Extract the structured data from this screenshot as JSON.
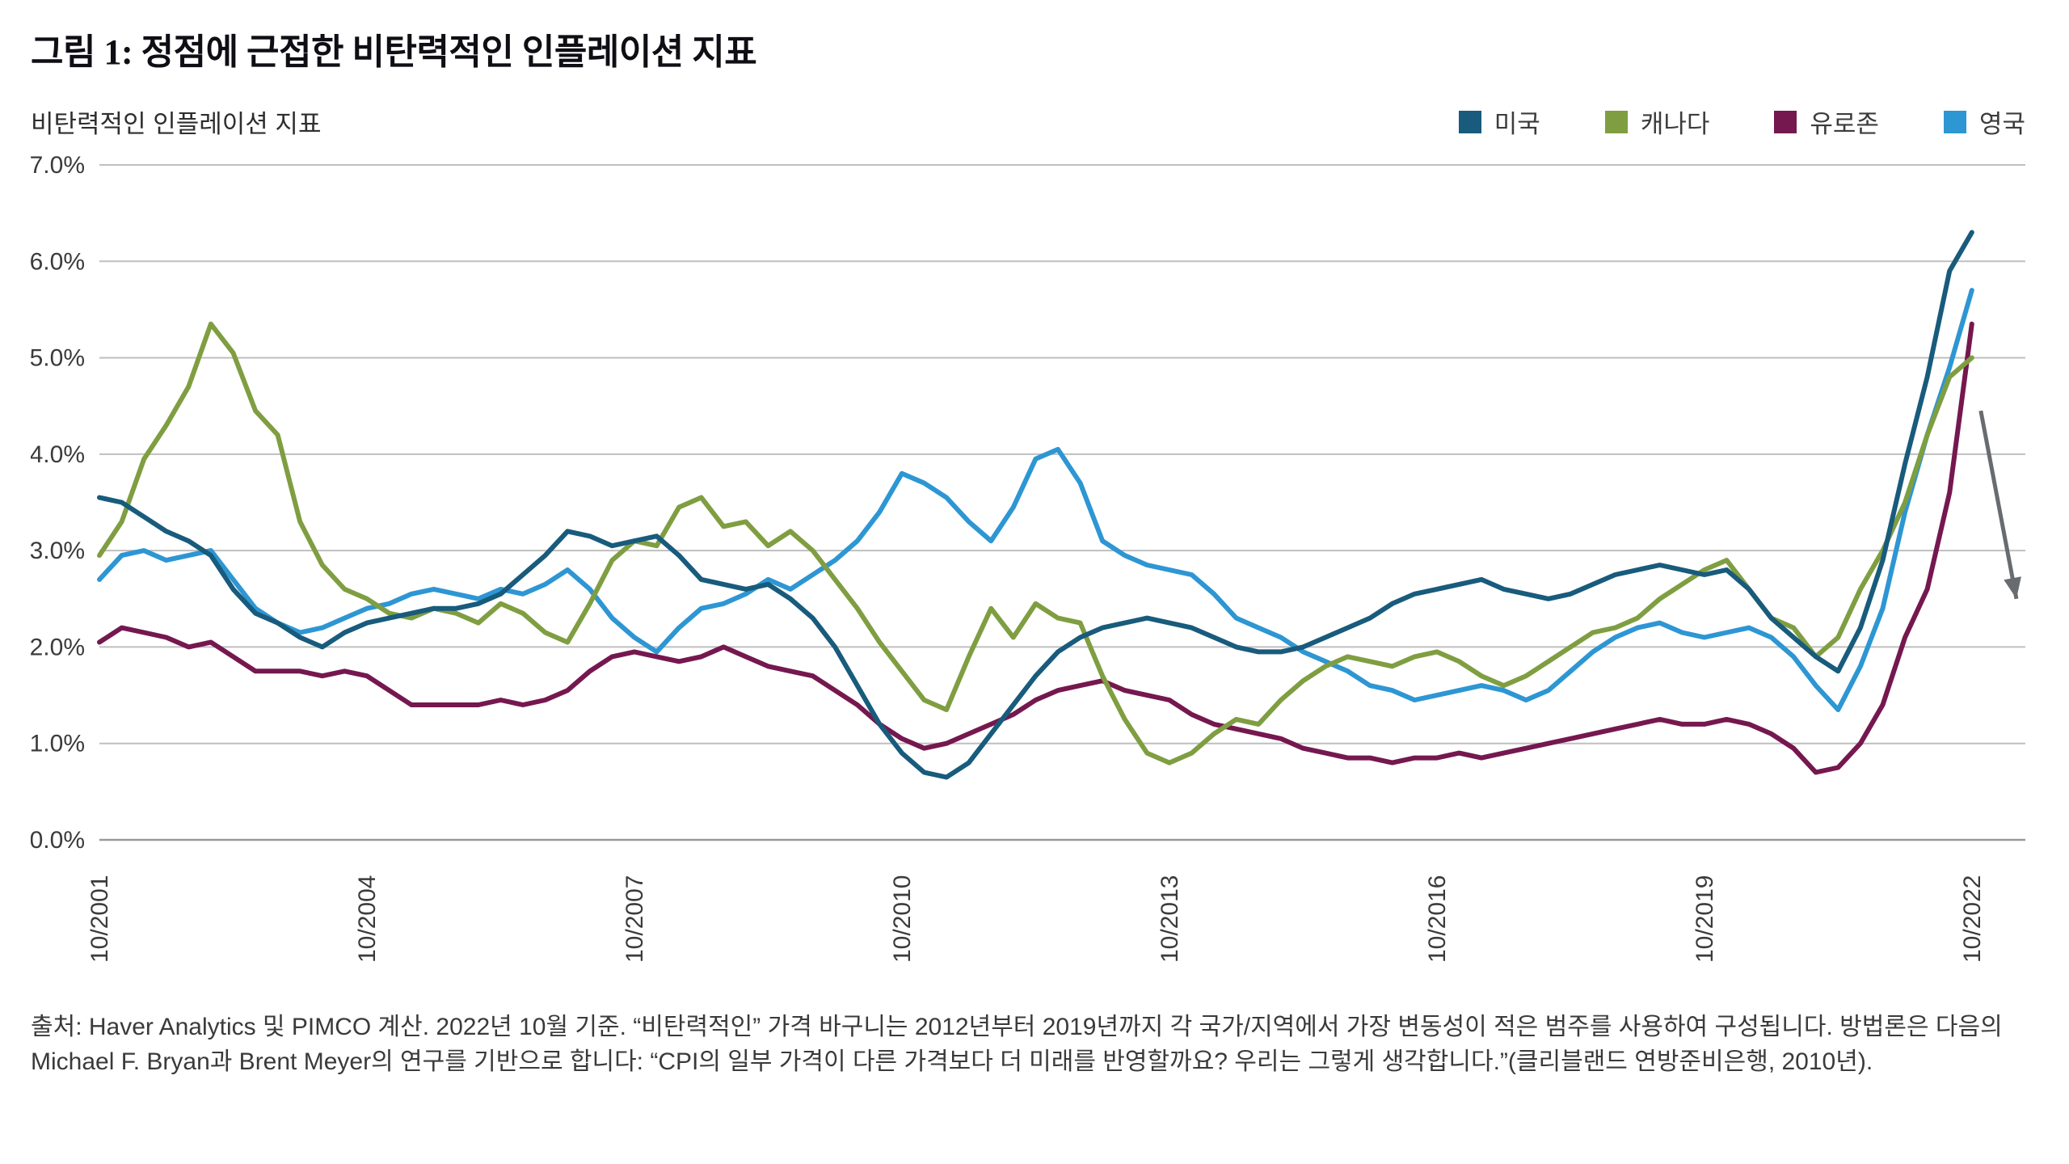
{
  "header": {
    "title": "그림 1: 정점에 근접한 비탄력적인 인플레이션 지표",
    "subtitle": "비탄력적인 인플레이션 지표"
  },
  "footer": {
    "source_note": "출처: Haver Analytics 및 PIMCO 계산. 2022년 10월 기준. “비탄력적인” 가격 바구니는 2012년부터 2019년까지 각 국가/지역에서 가장 변동성이 적은 범주를 사용하여 구성됩니다. 방법론은 다음의 Michael F. Bryan과 Brent Meyer의 연구를 기반으로 합니다: “CPI의 일부 가격이 다른 가격보다 더 미래를 반영할까요? 우리는 그렇게 생각합니다.”(클리블랜드 연방준비은행, 2010년)."
  },
  "chart_data": {
    "type": "line",
    "title": "그림 1: 정점에 근접한 비탄력적인 인플레이션 지표",
    "subtitle": "비탄력적인 인플레이션 지표",
    "xlabel": "",
    "ylabel": "",
    "ylim": [
      0,
      7
    ],
    "xlim": [
      2001.75,
      2023.35
    ],
    "grid": "horizontal",
    "legend_position": "top-right",
    "x_start": 2001.75,
    "x_step_years": 0.25,
    "x_unit": "quarterly, Oct 2001 - Oct 2022 (year fractions)",
    "yticks": [
      {
        "value": 0,
        "label": "0.0%"
      },
      {
        "value": 1,
        "label": "1.0%"
      },
      {
        "value": 2,
        "label": "2.0%"
      },
      {
        "value": 3,
        "label": "3.0%"
      },
      {
        "value": 4,
        "label": "4.0%"
      },
      {
        "value": 5,
        "label": "5.0%"
      },
      {
        "value": 6,
        "label": "6.0%"
      },
      {
        "value": 7,
        "label": "7.0%"
      }
    ],
    "xticks": [
      {
        "value": 2001.75,
        "label": "10/2001"
      },
      {
        "value": 2004.75,
        "label": "10/2004"
      },
      {
        "value": 2007.75,
        "label": "10/2007"
      },
      {
        "value": 2010.75,
        "label": "10/2010"
      },
      {
        "value": 2013.75,
        "label": "10/2013"
      },
      {
        "value": 2016.75,
        "label": "10/2016"
      },
      {
        "value": 2019.75,
        "label": "10/2019"
      },
      {
        "value": 2022.75,
        "label": "10/2022"
      }
    ],
    "colors": {
      "grid": "#BFBFBF",
      "axis": "#9A9A9A",
      "text": "#3B3B3B",
      "arrow": "#686C70"
    },
    "series": [
      {
        "id": "us",
        "name": "미국",
        "color": "#185B7C",
        "values": [
          3.55,
          3.5,
          3.35,
          3.2,
          3.1,
          2.95,
          2.6,
          2.35,
          2.25,
          2.1,
          2.0,
          2.15,
          2.25,
          2.3,
          2.35,
          2.4,
          2.4,
          2.45,
          2.55,
          2.75,
          2.95,
          3.2,
          3.15,
          3.05,
          3.1,
          3.15,
          2.95,
          2.7,
          2.65,
          2.6,
          2.65,
          2.5,
          2.3,
          2.0,
          1.6,
          1.2,
          0.9,
          0.7,
          0.65,
          0.8,
          1.1,
          1.4,
          1.7,
          1.95,
          2.1,
          2.2,
          2.25,
          2.3,
          2.25,
          2.2,
          2.1,
          2.0,
          1.95,
          1.95,
          2.0,
          2.1,
          2.2,
          2.3,
          2.45,
          2.55,
          2.6,
          2.65,
          2.7,
          2.6,
          2.55,
          2.5,
          2.55,
          2.65,
          2.75,
          2.8,
          2.85,
          2.8,
          2.75,
          2.8,
          2.6,
          2.3,
          2.1,
          1.9,
          1.75,
          2.2,
          2.9,
          3.9,
          4.8,
          5.9,
          6.3
        ]
      },
      {
        "id": "canada",
        "name": "캐나다",
        "color": "#7F9E41",
        "values": [
          2.95,
          3.3,
          3.95,
          4.3,
          4.7,
          5.35,
          5.05,
          4.45,
          4.2,
          3.3,
          2.85,
          2.6,
          2.5,
          2.35,
          2.3,
          2.4,
          2.35,
          2.25,
          2.45,
          2.35,
          2.15,
          2.05,
          2.45,
          2.9,
          3.1,
          3.05,
          3.45,
          3.55,
          3.25,
          3.3,
          3.05,
          3.2,
          3.0,
          2.7,
          2.4,
          2.05,
          1.75,
          1.45,
          1.35,
          1.9,
          2.4,
          2.1,
          2.45,
          2.3,
          2.25,
          1.7,
          1.25,
          0.9,
          0.8,
          0.9,
          1.1,
          1.25,
          1.2,
          1.45,
          1.65,
          1.8,
          1.9,
          1.85,
          1.8,
          1.9,
          1.95,
          1.85,
          1.7,
          1.6,
          1.7,
          1.85,
          2.0,
          2.15,
          2.2,
          2.3,
          2.5,
          2.65,
          2.8,
          2.9,
          2.6,
          2.3,
          2.2,
          1.9,
          2.1,
          2.6,
          3.0,
          3.5,
          4.2,
          4.8,
          5.0
        ]
      },
      {
        "id": "eurozone",
        "name": "유로존",
        "color": "#75184F",
        "values": [
          2.05,
          2.2,
          2.15,
          2.1,
          2.0,
          2.05,
          1.9,
          1.75,
          1.75,
          1.75,
          1.7,
          1.75,
          1.7,
          1.55,
          1.4,
          1.4,
          1.4,
          1.4,
          1.45,
          1.4,
          1.45,
          1.55,
          1.75,
          1.9,
          1.95,
          1.9,
          1.85,
          1.9,
          2.0,
          1.9,
          1.8,
          1.75,
          1.7,
          1.55,
          1.4,
          1.2,
          1.05,
          0.95,
          1.0,
          1.1,
          1.2,
          1.3,
          1.45,
          1.55,
          1.6,
          1.65,
          1.55,
          1.5,
          1.45,
          1.3,
          1.2,
          1.15,
          1.1,
          1.05,
          0.95,
          0.9,
          0.85,
          0.85,
          0.8,
          0.85,
          0.85,
          0.9,
          0.85,
          0.9,
          0.95,
          1.0,
          1.05,
          1.1,
          1.15,
          1.2,
          1.25,
          1.2,
          1.2,
          1.25,
          1.2,
          1.1,
          0.95,
          0.7,
          0.75,
          1.0,
          1.4,
          2.1,
          2.6,
          3.6,
          5.35
        ]
      },
      {
        "id": "uk",
        "name": "영국",
        "color": "#2D96D3",
        "values": [
          2.7,
          2.95,
          3.0,
          2.9,
          2.95,
          3.0,
          2.7,
          2.4,
          2.25,
          2.15,
          2.2,
          2.3,
          2.4,
          2.45,
          2.55,
          2.6,
          2.55,
          2.5,
          2.6,
          2.55,
          2.65,
          2.8,
          2.6,
          2.3,
          2.1,
          1.95,
          2.2,
          2.4,
          2.45,
          2.55,
          2.7,
          2.6,
          2.75,
          2.9,
          3.1,
          3.4,
          3.8,
          3.7,
          3.55,
          3.3,
          3.1,
          3.45,
          3.95,
          4.05,
          3.7,
          3.1,
          2.95,
          2.85,
          2.8,
          2.75,
          2.55,
          2.3,
          2.2,
          2.1,
          1.95,
          1.85,
          1.75,
          1.6,
          1.55,
          1.45,
          1.5,
          1.55,
          1.6,
          1.55,
          1.45,
          1.55,
          1.75,
          1.95,
          2.1,
          2.2,
          2.25,
          2.15,
          2.1,
          2.15,
          2.2,
          2.1,
          1.9,
          1.6,
          1.35,
          1.8,
          2.4,
          3.4,
          4.2,
          4.9,
          5.7
        ]
      }
    ],
    "annotation_arrow": {
      "x1": 2022.85,
      "y1": 4.45,
      "x2": 2023.25,
      "y2": 2.5,
      "color": "#686C70"
    }
  }
}
